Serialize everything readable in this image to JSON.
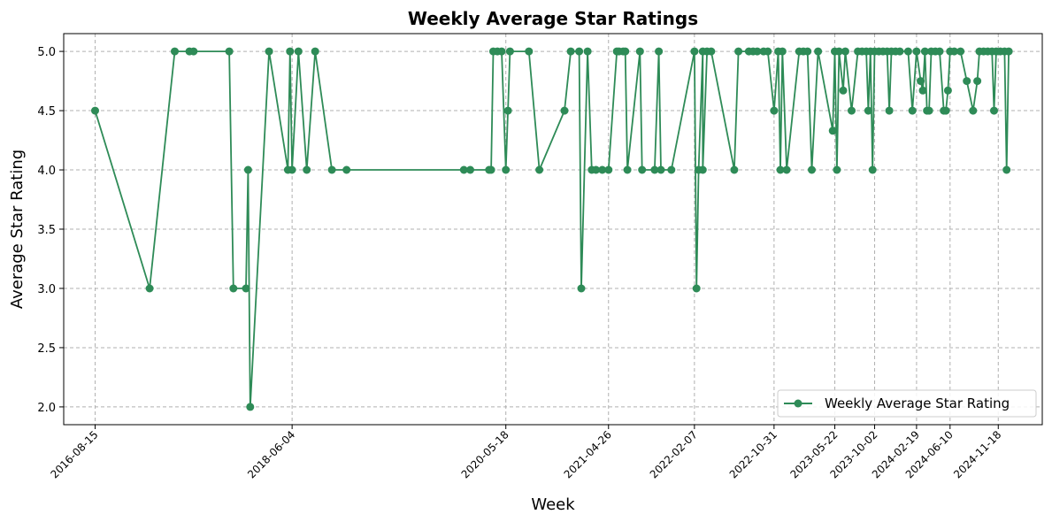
{
  "chart_data": {
    "type": "line",
    "title": "Weekly Average Star Ratings",
    "xlabel": "Week",
    "ylabel": "Average Star Rating",
    "ylim": [
      1.85,
      5.15
    ],
    "yticks": [
      "2.0",
      "2.5",
      "3.0",
      "3.5",
      "4.0",
      "4.5",
      "5.0"
    ],
    "xlim": [
      "2016-05-02",
      "2025-04-14"
    ],
    "xticks": [
      "2016-08-15",
      "2018-06-04",
      "2020-05-18",
      "2021-04-26",
      "2022-02-07",
      "2022-10-31",
      "2023-05-22",
      "2023-10-02",
      "2024-02-19",
      "2024-06-10",
      "2024-11-18"
    ],
    "grid": true,
    "legend_position": "lower-right",
    "colors": {
      "series": "#2e8b57",
      "grid": "#b0b0b0"
    },
    "series": [
      {
        "name": "Weekly Average Star Rating",
        "points": [
          [
            "2016-08-15",
            4.5
          ],
          [
            "2017-02-13",
            3.0
          ],
          [
            "2017-05-08",
            5.0
          ],
          [
            "2017-06-26",
            5.0
          ],
          [
            "2017-07-10",
            5.0
          ],
          [
            "2017-11-06",
            5.0
          ],
          [
            "2017-11-20",
            3.0
          ],
          [
            "2018-01-01",
            3.0
          ],
          [
            "2018-01-08",
            4.0
          ],
          [
            "2018-01-15",
            2.0
          ],
          [
            "2018-03-19",
            5.0
          ],
          [
            "2018-05-21",
            4.0
          ],
          [
            "2018-05-28",
            5.0
          ],
          [
            "2018-06-04",
            4.0
          ],
          [
            "2018-06-25",
            5.0
          ],
          [
            "2018-07-23",
            4.0
          ],
          [
            "2018-08-20",
            5.0
          ],
          [
            "2018-10-15",
            4.0
          ],
          [
            "2018-12-03",
            4.0
          ],
          [
            "2019-12-30",
            4.0
          ],
          [
            "2020-01-20",
            4.0
          ],
          [
            "2020-03-23",
            4.0
          ],
          [
            "2020-03-30",
            4.0
          ],
          [
            "2020-04-06",
            5.0
          ],
          [
            "2020-04-20",
            5.0
          ],
          [
            "2020-05-04",
            5.0
          ],
          [
            "2020-05-18",
            4.0
          ],
          [
            "2020-05-25",
            4.5
          ],
          [
            "2020-06-01",
            5.0
          ],
          [
            "2020-08-03",
            5.0
          ],
          [
            "2020-09-07",
            4.0
          ],
          [
            "2020-11-30",
            4.5
          ],
          [
            "2020-12-21",
            5.0
          ],
          [
            "2021-01-18",
            5.0
          ],
          [
            "2021-01-25",
            3.0
          ],
          [
            "2021-02-15",
            5.0
          ],
          [
            "2021-03-01",
            4.0
          ],
          [
            "2021-03-15",
            4.0
          ],
          [
            "2021-04-05",
            4.0
          ],
          [
            "2021-04-26",
            4.0
          ],
          [
            "2021-05-24",
            5.0
          ],
          [
            "2021-05-31",
            5.0
          ],
          [
            "2021-06-14",
            5.0
          ],
          [
            "2021-06-21",
            5.0
          ],
          [
            "2021-06-28",
            4.0
          ],
          [
            "2021-08-09",
            5.0
          ],
          [
            "2021-08-16",
            4.0
          ],
          [
            "2021-09-27",
            4.0
          ],
          [
            "2021-10-11",
            5.0
          ],
          [
            "2021-10-18",
            4.0
          ],
          [
            "2021-11-22",
            4.0
          ],
          [
            "2022-02-07",
            5.0
          ],
          [
            "2022-02-14",
            3.0
          ],
          [
            "2022-02-21",
            4.0
          ],
          [
            "2022-03-07",
            5.0
          ],
          [
            "2022-03-07",
            4.0
          ],
          [
            "2022-03-21",
            5.0
          ],
          [
            "2022-04-04",
            5.0
          ],
          [
            "2022-06-20",
            4.0
          ],
          [
            "2022-07-04",
            5.0
          ],
          [
            "2022-08-08",
            5.0
          ],
          [
            "2022-08-22",
            5.0
          ],
          [
            "2022-09-05",
            5.0
          ],
          [
            "2022-09-26",
            5.0
          ],
          [
            "2022-10-10",
            5.0
          ],
          [
            "2022-10-31",
            4.5
          ],
          [
            "2022-11-14",
            5.0
          ],
          [
            "2022-11-21",
            4.0
          ],
          [
            "2022-11-28",
            5.0
          ],
          [
            "2022-12-12",
            4.0
          ],
          [
            "2023-01-23",
            5.0
          ],
          [
            "2023-02-06",
            5.0
          ],
          [
            "2023-02-20",
            5.0
          ],
          [
            "2023-03-06",
            4.0
          ],
          [
            "2023-03-27",
            5.0
          ],
          [
            "2023-05-15",
            4.33
          ],
          [
            "2023-05-22",
            5.0
          ],
          [
            "2023-05-29",
            4.0
          ],
          [
            "2023-06-05",
            5.0
          ],
          [
            "2023-06-19",
            4.67
          ],
          [
            "2023-06-26",
            5.0
          ],
          [
            "2023-07-17",
            4.5
          ],
          [
            "2023-08-07",
            5.0
          ],
          [
            "2023-08-21",
            5.0
          ],
          [
            "2023-09-04",
            5.0
          ],
          [
            "2023-09-11",
            4.5
          ],
          [
            "2023-09-18",
            5.0
          ],
          [
            "2023-09-25",
            4.0
          ],
          [
            "2023-10-02",
            5.0
          ],
          [
            "2023-10-16",
            5.0
          ],
          [
            "2023-10-30",
            5.0
          ],
          [
            "2023-11-13",
            5.0
          ],
          [
            "2023-11-20",
            4.5
          ],
          [
            "2023-11-27",
            5.0
          ],
          [
            "2023-12-11",
            5.0
          ],
          [
            "2023-12-25",
            5.0
          ],
          [
            "2024-01-22",
            5.0
          ],
          [
            "2024-02-05",
            4.5
          ],
          [
            "2024-02-19",
            5.0
          ],
          [
            "2024-03-04",
            4.75
          ],
          [
            "2024-03-11",
            4.67
          ],
          [
            "2024-03-18",
            5.0
          ],
          [
            "2024-03-25",
            4.5
          ],
          [
            "2024-04-01",
            4.5
          ],
          [
            "2024-04-08",
            5.0
          ],
          [
            "2024-04-22",
            5.0
          ],
          [
            "2024-05-06",
            5.0
          ],
          [
            "2024-05-20",
            4.5
          ],
          [
            "2024-05-27",
            4.5
          ],
          [
            "2024-06-03",
            4.67
          ],
          [
            "2024-06-10",
            5.0
          ],
          [
            "2024-06-24",
            5.0
          ],
          [
            "2024-07-15",
            5.0
          ],
          [
            "2024-08-05",
            4.75
          ],
          [
            "2024-08-26",
            4.5
          ],
          [
            "2024-09-09",
            4.75
          ],
          [
            "2024-09-16",
            5.0
          ],
          [
            "2024-09-30",
            5.0
          ],
          [
            "2024-10-14",
            5.0
          ],
          [
            "2024-10-28",
            5.0
          ],
          [
            "2024-11-04",
            4.5
          ],
          [
            "2024-11-11",
            5.0
          ],
          [
            "2024-11-25",
            5.0
          ],
          [
            "2024-12-09",
            5.0
          ],
          [
            "2024-12-16",
            4.0
          ],
          [
            "2024-12-23",
            5.0
          ]
        ]
      }
    ]
  }
}
